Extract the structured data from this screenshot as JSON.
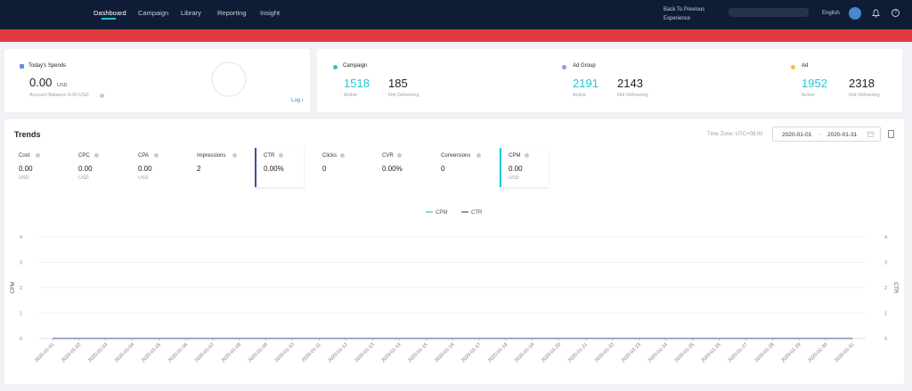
{
  "nav": {
    "items": [
      "Dashboard",
      "Campaign",
      "Library",
      "Reporting",
      "Insight"
    ],
    "back_link": "Back To Previous Experience",
    "language": "English"
  },
  "spends": {
    "title": "Today's Spends",
    "value": "0.00",
    "unit": "USD",
    "balance": "Account Balance 0.00 USD",
    "log": "Log ›"
  },
  "stats": [
    {
      "title": "Campaign",
      "active": "1518",
      "active_label": "Active",
      "nd": "185",
      "nd_label": "Not Delivering",
      "color": "#23c6d6"
    },
    {
      "title": "Ad Group",
      "active": "2191",
      "active_label": "Active",
      "nd": "2143",
      "nd_label": "Not Delivering",
      "color": "#b388e8"
    },
    {
      "title": "Ad",
      "active": "1952",
      "active_label": "Active",
      "nd": "2318",
      "nd_label": "Not Delivering",
      "color": "#f5c242"
    }
  ],
  "trends": {
    "title": "Trends",
    "timezone": "Time Zone: UTC+08:00",
    "date_from": "2020-01-01",
    "date_sep": "~",
    "date_to": "2020-01-31",
    "metrics": [
      {
        "label": "Cost",
        "value": "0.00",
        "unit": "USD"
      },
      {
        "label": "CPC",
        "value": "0.00",
        "unit": "USD"
      },
      {
        "label": "CPA",
        "value": "0.00",
        "unit": "USD"
      },
      {
        "label": "Impressions",
        "value": "2",
        "unit": ""
      },
      {
        "label": "CTR",
        "value": "0.00%",
        "unit": ""
      },
      {
        "label": "Clicks",
        "value": "0",
        "unit": ""
      },
      {
        "label": "CVR",
        "value": "0.00%",
        "unit": ""
      },
      {
        "label": "Conversions",
        "value": "0",
        "unit": ""
      },
      {
        "label": "CPM",
        "value": "0.00",
        "unit": "USD"
      }
    ]
  },
  "chart_data": {
    "type": "line",
    "x": [
      "2020-01-01",
      "2020-01-02",
      "2020-01-03",
      "2020-01-04",
      "2020-01-05",
      "2020-01-06",
      "2020-01-07",
      "2020-01-08",
      "2020-01-09",
      "2020-01-10",
      "2020-01-11",
      "2020-01-12",
      "2020-01-13",
      "2020-01-14",
      "2020-01-15",
      "2020-01-16",
      "2020-01-17",
      "2020-01-18",
      "2020-01-19",
      "2020-01-20",
      "2020-01-21",
      "2020-01-22",
      "2020-01-23",
      "2020-01-24",
      "2020-01-25",
      "2020-01-26",
      "2020-01-27",
      "2020-01-28",
      "2020-01-29",
      "2020-01-30",
      "2020-01-31"
    ],
    "series": [
      {
        "name": "CPM",
        "color": "#23c6d6",
        "values": [
          0,
          0,
          0,
          0,
          0,
          0,
          0,
          0,
          0,
          0,
          0,
          0,
          0,
          0,
          0,
          0,
          0,
          0,
          0,
          0,
          0,
          0,
          0,
          0,
          0,
          0,
          0,
          0,
          0,
          0,
          0
        ]
      },
      {
        "name": "CTR",
        "color": "#3f51a3",
        "values": [
          0,
          0,
          0,
          0,
          0,
          0,
          0,
          0,
          0,
          0,
          0,
          0,
          0,
          0,
          0,
          0,
          0,
          0,
          0,
          0,
          0,
          0,
          0,
          0,
          0,
          0,
          0,
          0,
          0,
          0,
          0
        ]
      }
    ],
    "ylabel_left": "CPM",
    "ylabel_right": "CTR",
    "yticks": [
      0,
      1,
      2,
      3,
      4
    ],
    "ylim": [
      0,
      4
    ],
    "legend": "top-center",
    "grid": true
  }
}
